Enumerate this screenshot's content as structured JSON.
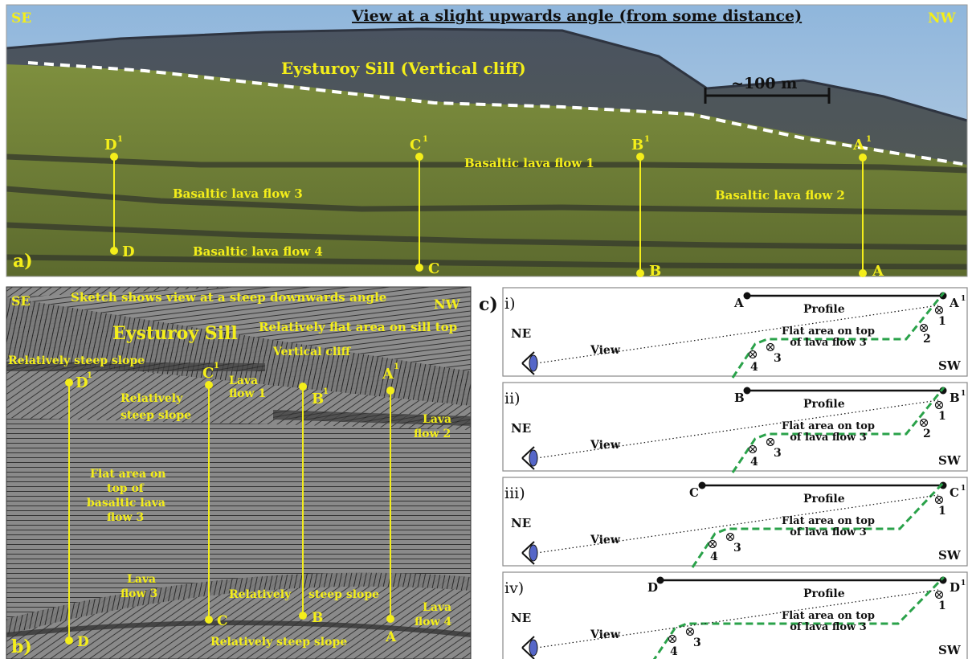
{
  "panel_a": {
    "id": "a)",
    "left_dir": "SE",
    "right_dir": "NW",
    "title": "View at a slight upwards angle (from some distance)",
    "sill": "Eysturoy Sill (Vertical cliff)",
    "scale": "~100 m",
    "flow1": "Basaltic lava flow 1",
    "flow2": "Basaltic lava flow 2",
    "flow3": "Basaltic lava flow 3",
    "flow4": "Basaltic lava flow 4",
    "profiles": [
      {
        "top": "D",
        "bottom": "D"
      },
      {
        "top": "C",
        "bottom": "C"
      },
      {
        "top": "B",
        "bottom": "B"
      },
      {
        "top": "A",
        "bottom": "A"
      }
    ],
    "sup": "1",
    "colors": {
      "label": "#f4ee1a",
      "sky": "#8fb0d2",
      "grass": "#7e8a3a",
      "rock": "#3c4032"
    }
  },
  "panel_b": {
    "id": "b)",
    "left_dir": "SE",
    "right_dir": "NW",
    "title": "Sketch shows view at a steep downwards angle",
    "sill": "Eysturoy Sill",
    "flat_sill": "Relatively flat area on sill top",
    "steep_top": "Relatively steep slope",
    "vertical_cliff": "Vertical cliff",
    "lava_flow1_a": "Lava",
    "lava_flow1_b": "flow 1",
    "steep_mid_a": "Relatively",
    "steep_mid_b": "steep slope",
    "lava_flow2_a": "Lava",
    "lava_flow2_b": "flow 2",
    "flat_a": "Flat area on",
    "flat_b": "top of",
    "flat_c": "basaltic lava",
    "flat_d": "flow 3",
    "lava_flow3_a": "Lava",
    "lava_flow3_b": "flow 3",
    "steep_low_a": "Relatively",
    "steep_low_b": "steep slope",
    "lava_flow4_a": "Lava",
    "lava_flow4_b": "flow 4",
    "steep_bottom": "Relatively steep slope",
    "profiles": [
      {
        "top": "D",
        "bottom": "D"
      },
      {
        "top": "C",
        "bottom": "C"
      },
      {
        "top": "B",
        "bottom": "B"
      },
      {
        "top": "A",
        "bottom": "A"
      }
    ],
    "sup": "1"
  },
  "panel_c": {
    "id": "c)",
    "ne": "NE",
    "sw": "SW",
    "profile": "Profile",
    "view": "View",
    "flat_a": "Flat area on top",
    "flat_b": "of lava flow 3",
    "sup": "1",
    "subpanels": [
      {
        "roman": "i)",
        "letter": "A",
        "n1": "1",
        "n2": "2",
        "n3": "3",
        "n4": "4"
      },
      {
        "roman": "ii)",
        "letter": "B",
        "n1": "1",
        "n2": "2",
        "n3": "3",
        "n4": "4"
      },
      {
        "roman": "iii)",
        "letter": "C",
        "n1": "1",
        "n3": "3",
        "n4": "4"
      },
      {
        "roman": "iv)",
        "letter": "D",
        "n1": "1",
        "n3": "3",
        "n4": "4"
      }
    ],
    "colors": {
      "terrain": "#2aa24a",
      "eye": "#5566c8"
    }
  }
}
